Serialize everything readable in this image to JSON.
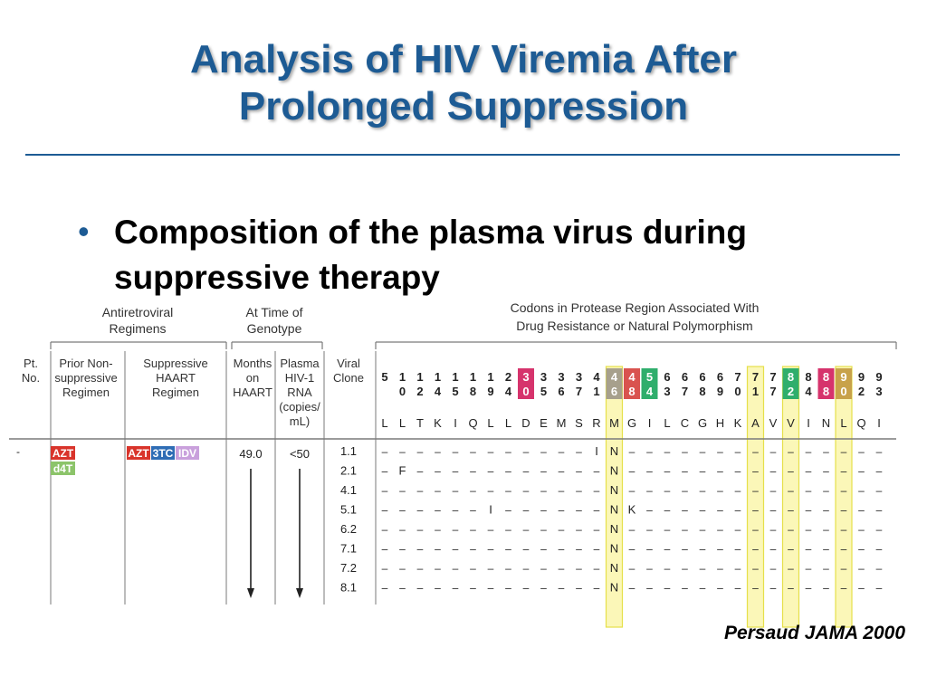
{
  "slide": {
    "title_line1": "Analysis of HIV Viremia After",
    "title_line2": "Prolonged Suppression",
    "bullet": "Composition of the plasma virus during suppressive therapy",
    "citation": "Persaud JAMA 2000"
  },
  "table": {
    "group_headers": {
      "antiretroviral": [
        "Antiretroviral",
        "Regimens"
      ],
      "genotype": [
        "At Time of",
        "Genotype"
      ],
      "codons": [
        "Codons in Protease Region Associated With",
        "Drug Resistance or Natural Polymorphism"
      ]
    },
    "columns": {
      "pt": [
        "Pt.",
        "No."
      ],
      "prior": [
        "Prior Non-",
        "suppressive",
        "Regimen"
      ],
      "suppressive": [
        "Suppressive",
        "HAART",
        "Regimen"
      ],
      "months": [
        "Months",
        "on",
        "HAART"
      ],
      "plasma": [
        "Plasma",
        "HIV-1",
        "RNA",
        "(copies/",
        "mL)"
      ],
      "clone": [
        "Viral",
        "Clone"
      ]
    },
    "codons": [
      {
        "top": "5",
        "bottom": "",
        "aa": "L"
      },
      {
        "top": "1",
        "bottom": "0",
        "aa": "L"
      },
      {
        "top": "1",
        "bottom": "2",
        "aa": "T"
      },
      {
        "top": "1",
        "bottom": "4",
        "aa": "K"
      },
      {
        "top": "1",
        "bottom": "5",
        "aa": "I"
      },
      {
        "top": "1",
        "bottom": "8",
        "aa": "Q"
      },
      {
        "top": "1",
        "bottom": "9",
        "aa": "L"
      },
      {
        "top": "2",
        "bottom": "4",
        "aa": "L"
      },
      {
        "top": "3",
        "bottom": "0",
        "aa": "D",
        "highlight": "#d6336c"
      },
      {
        "top": "3",
        "bottom": "5",
        "aa": "E"
      },
      {
        "top": "3",
        "bottom": "6",
        "aa": "M"
      },
      {
        "top": "3",
        "bottom": "7",
        "aa": "S"
      },
      {
        "top": "4",
        "bottom": "1",
        "aa": "R"
      },
      {
        "top": "4",
        "bottom": "6",
        "aa": "M",
        "highlight": "#a7a08c",
        "box": true
      },
      {
        "top": "4",
        "bottom": "8",
        "aa": "G",
        "highlight": "#d9534f"
      },
      {
        "top": "5",
        "bottom": "4",
        "aa": "I",
        "highlight": "#2fae6c"
      },
      {
        "top": "6",
        "bottom": "3",
        "aa": "L"
      },
      {
        "top": "6",
        "bottom": "7",
        "aa": "C"
      },
      {
        "top": "6",
        "bottom": "8",
        "aa": "G"
      },
      {
        "top": "6",
        "bottom": "9",
        "aa": "H"
      },
      {
        "top": "7",
        "bottom": "0",
        "aa": "K"
      },
      {
        "top": "7",
        "bottom": "1",
        "aa": "A",
        "box": true
      },
      {
        "top": "7",
        "bottom": "7",
        "aa": "V"
      },
      {
        "top": "8",
        "bottom": "2",
        "aa": "V",
        "highlight": "#2fae6c",
        "box": true
      },
      {
        "top": "8",
        "bottom": "4",
        "aa": "I"
      },
      {
        "top": "8",
        "bottom": "8",
        "aa": "N",
        "highlight": "#d6336c"
      },
      {
        "top": "9",
        "bottom": "0",
        "aa": "L",
        "highlight": "#c8a24a",
        "box": true
      },
      {
        "top": "9",
        "bottom": "2",
        "aa": "Q"
      },
      {
        "top": "9",
        "bottom": "3",
        "aa": "I"
      }
    ],
    "patient": {
      "number": "-",
      "prior_regimen": [
        {
          "label": "AZT",
          "color": "#d9342b"
        },
        {
          "label": "d4T",
          "color": "#8cc46a"
        }
      ],
      "suppressive_regimen": [
        {
          "label": "AZT",
          "color": "#d9342b"
        },
        {
          "label": "3TC",
          "color": "#2f6db5"
        },
        {
          "label": "IDV",
          "color": "#c9a0dc"
        }
      ],
      "months": "49.0",
      "plasma_rna": "<50"
    },
    "clones": [
      {
        "id": "1.1",
        "changes": {
          "12": "I",
          "13": "N"
        }
      },
      {
        "id": "2.1",
        "changes": {
          "1": "F",
          "13": "N"
        }
      },
      {
        "id": "4.1",
        "changes": {
          "13": "N"
        }
      },
      {
        "id": "5.1",
        "changes": {
          "6": "I",
          "13": "N",
          "14": "K"
        }
      },
      {
        "id": "6.2",
        "changes": {
          "13": "N"
        }
      },
      {
        "id": "7.1",
        "changes": {
          "13": "N"
        }
      },
      {
        "id": "7.2",
        "changes": {
          "13": "N"
        }
      },
      {
        "id": "8.1",
        "changes": {
          "13": "N"
        }
      }
    ],
    "dash": "–",
    "box_color": "#f3f06a",
    "colors": {
      "header_text": "#333333",
      "line": "#7a7a7a",
      "title": "#1d5b94"
    }
  }
}
